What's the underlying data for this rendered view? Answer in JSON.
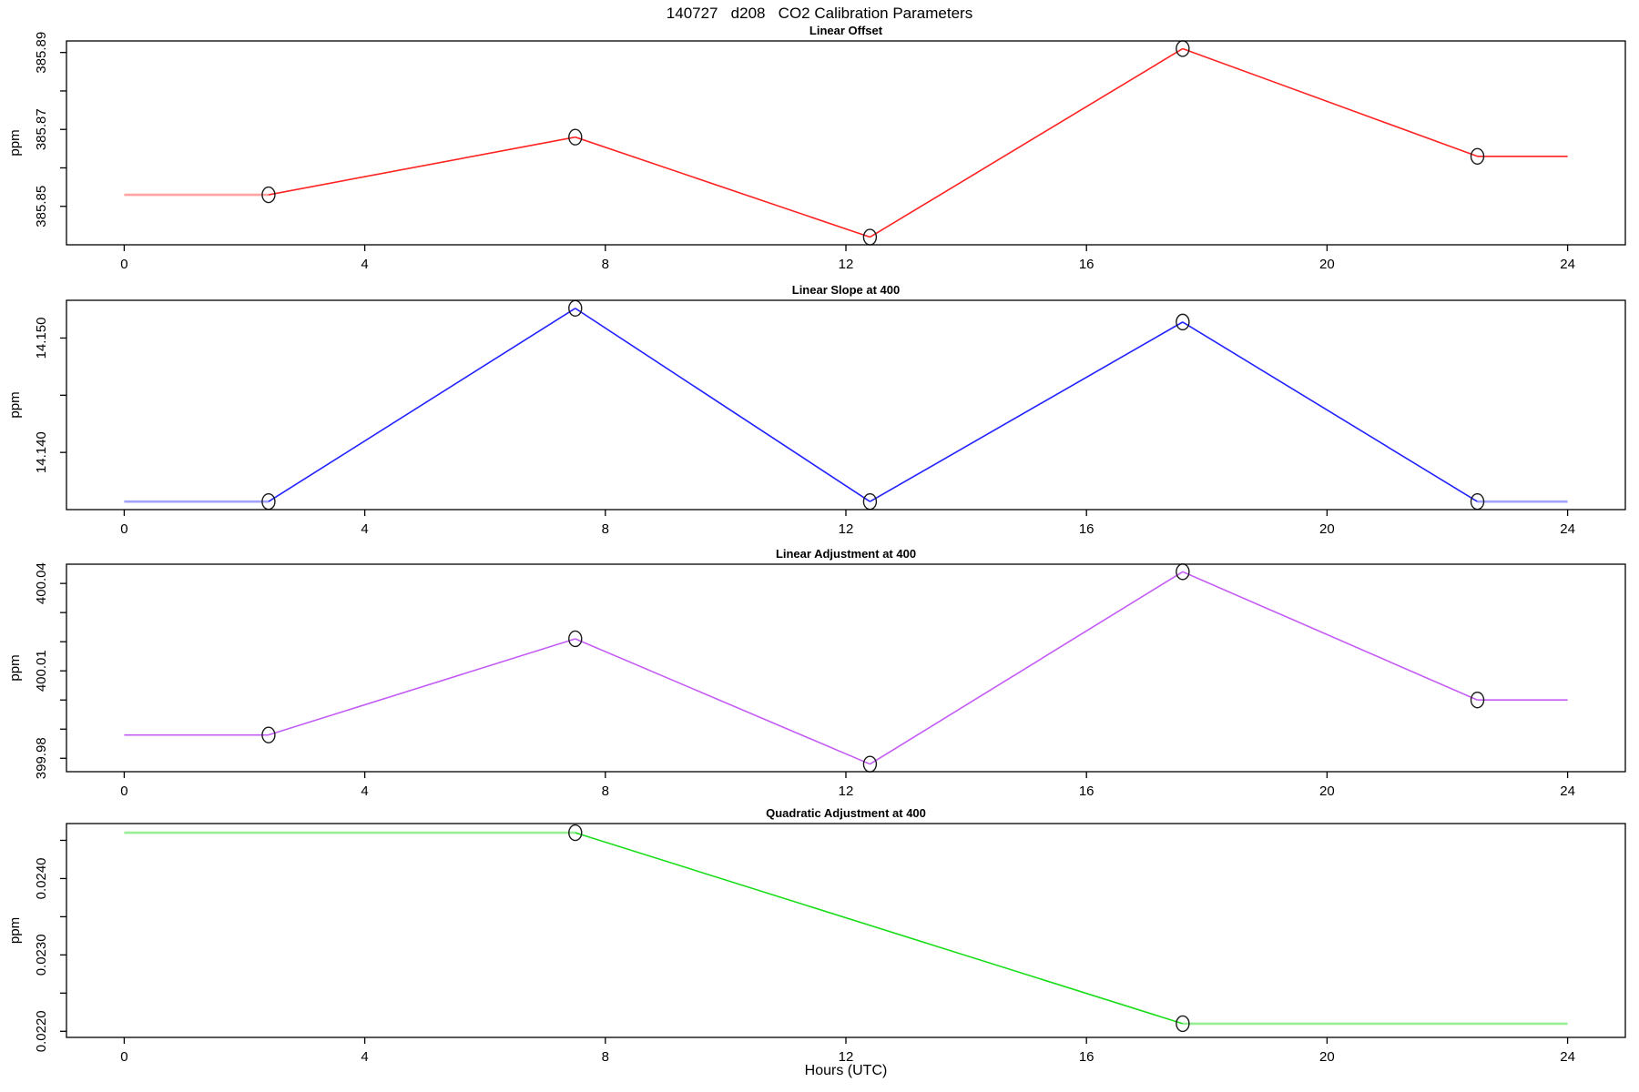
{
  "title": "140727   d208   CO2 Calibration Parameters",
  "xlabel": "Hours (UTC)",
  "x_ticks": [
    0,
    4,
    8,
    12,
    16,
    20,
    24
  ],
  "chart_data": [
    {
      "type": "line",
      "title": "Linear Offset",
      "ylabel": "ppm",
      "color": "#FF2222",
      "light_color": "#FFA2A2",
      "marker": "open-circle",
      "x": [
        2.4,
        7.5,
        12.4,
        17.6,
        22.5
      ],
      "y": [
        385.853,
        385.868,
        385.842,
        385.891,
        385.863
      ],
      "extend_left": {
        "to_x": 0,
        "light": true
      },
      "extend_right": {
        "to_x": 24,
        "light": false
      },
      "xlim": [
        -0.96,
        24.96
      ],
      "ylim": [
        385.84,
        385.893
      ],
      "y_ticks": [
        {
          "v": 385.85,
          "label": "385.85"
        },
        {
          "v": 385.86,
          "label": ""
        },
        {
          "v": 385.87,
          "label": "385.87"
        },
        {
          "v": 385.88,
          "label": ""
        },
        {
          "v": 385.89,
          "label": "385.89"
        }
      ]
    },
    {
      "type": "line",
      "title": "Linear Slope at 400",
      "ylabel": "ppm",
      "color": "#2222FF",
      "light_color": "#A2A2FF",
      "marker": "open-circle",
      "x": [
        2.4,
        7.5,
        12.4,
        17.6,
        22.5
      ],
      "y": [
        14.1357,
        14.1526,
        14.1357,
        14.1514,
        14.1357
      ],
      "extend_left": {
        "to_x": 0,
        "light": true
      },
      "extend_right": {
        "to_x": 24,
        "light": true
      },
      "xlim": [
        -0.96,
        24.96
      ],
      "ylim": [
        14.135,
        14.1533
      ],
      "y_ticks": [
        {
          "v": 14.14,
          "label": "14.140"
        },
        {
          "v": 14.145,
          "label": ""
        },
        {
          "v": 14.15,
          "label": "14.150"
        }
      ]
    },
    {
      "type": "line",
      "title": "Linear Adjustment at 400",
      "ylabel": "ppm",
      "color": "#C45CF6",
      "light_color": "#E0AAFA",
      "marker": "open-circle",
      "x": [
        2.4,
        7.5,
        12.4,
        17.6,
        22.5
      ],
      "y": [
        399.988,
        400.021,
        399.978,
        400.044,
        400.0
      ],
      "extend_left": {
        "to_x": 0,
        "light": false
      },
      "extend_right": {
        "to_x": 24,
        "light": false
      },
      "xlim": [
        -0.96,
        24.96
      ],
      "ylim": [
        399.9754,
        400.0466
      ],
      "y_ticks": [
        {
          "v": 399.98,
          "label": "399.98"
        },
        {
          "v": 399.99,
          "label": ""
        },
        {
          "v": 400.0,
          "label": ""
        },
        {
          "v": 400.01,
          "label": "400.01"
        },
        {
          "v": 400.02,
          "label": ""
        },
        {
          "v": 400.03,
          "label": ""
        },
        {
          "v": 400.04,
          "label": "400.04"
        }
      ]
    },
    {
      "type": "line",
      "title": "Quadratic Adjustment at 400",
      "ylabel": "ppm",
      "color": "#1ADD1A",
      "light_color": "#97EE97",
      "marker": "open-circle",
      "x": [
        7.5,
        17.6
      ],
      "y": [
        0.0246,
        0.0221
      ],
      "extend_left": {
        "to_x": 0,
        "light": true
      },
      "extend_right": {
        "to_x": 24,
        "light": true
      },
      "xlim": [
        -0.96,
        24.96
      ],
      "ylim": [
        0.02192,
        0.02472
      ],
      "y_ticks": [
        {
          "v": 0.022,
          "label": "0.0220"
        },
        {
          "v": 0.0225,
          "label": ""
        },
        {
          "v": 0.023,
          "label": "0.0230"
        },
        {
          "v": 0.0235,
          "label": ""
        },
        {
          "v": 0.024,
          "label": "0.0240"
        },
        {
          "v": 0.0245,
          "label": ""
        }
      ]
    }
  ]
}
